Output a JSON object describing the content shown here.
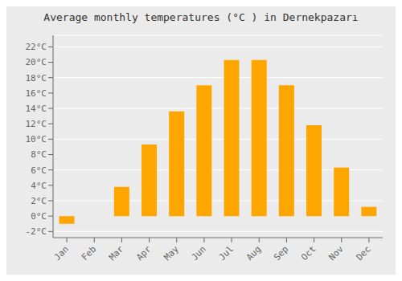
{
  "chart_data": {
    "type": "bar",
    "title": "Average monthly temperatures (°C ) in Dernekpazarı",
    "categories": [
      "Jan",
      "Feb",
      "Mar",
      "Apr",
      "May",
      "Jun",
      "Jul",
      "Aug",
      "Sep",
      "Oct",
      "Nov",
      "Dec"
    ],
    "values": [
      -1.0,
      0.0,
      3.8,
      9.3,
      13.6,
      17.0,
      20.3,
      20.3,
      17.0,
      11.8,
      6.3,
      1.2
    ],
    "color": "#FFA500",
    "ylim": [
      -2.8,
      23.5
    ],
    "yticks": [
      {
        "value": -2,
        "label": "-2°C"
      },
      {
        "value": 0,
        "label": "0°C"
      },
      {
        "value": 2,
        "label": "2°C"
      },
      {
        "value": 4,
        "label": "4°C"
      },
      {
        "value": 6,
        "label": "6°C"
      },
      {
        "value": 8,
        "label": "8°C"
      },
      {
        "value": 10,
        "label": "10°C"
      },
      {
        "value": 12,
        "label": "12°C"
      },
      {
        "value": 14,
        "label": "14°C"
      },
      {
        "value": 16,
        "label": "16°C"
      },
      {
        "value": 18,
        "label": "18°C"
      },
      {
        "value": 20,
        "label": "20°C"
      },
      {
        "value": 22,
        "label": "22°C"
      }
    ],
    "grid": true
  }
}
